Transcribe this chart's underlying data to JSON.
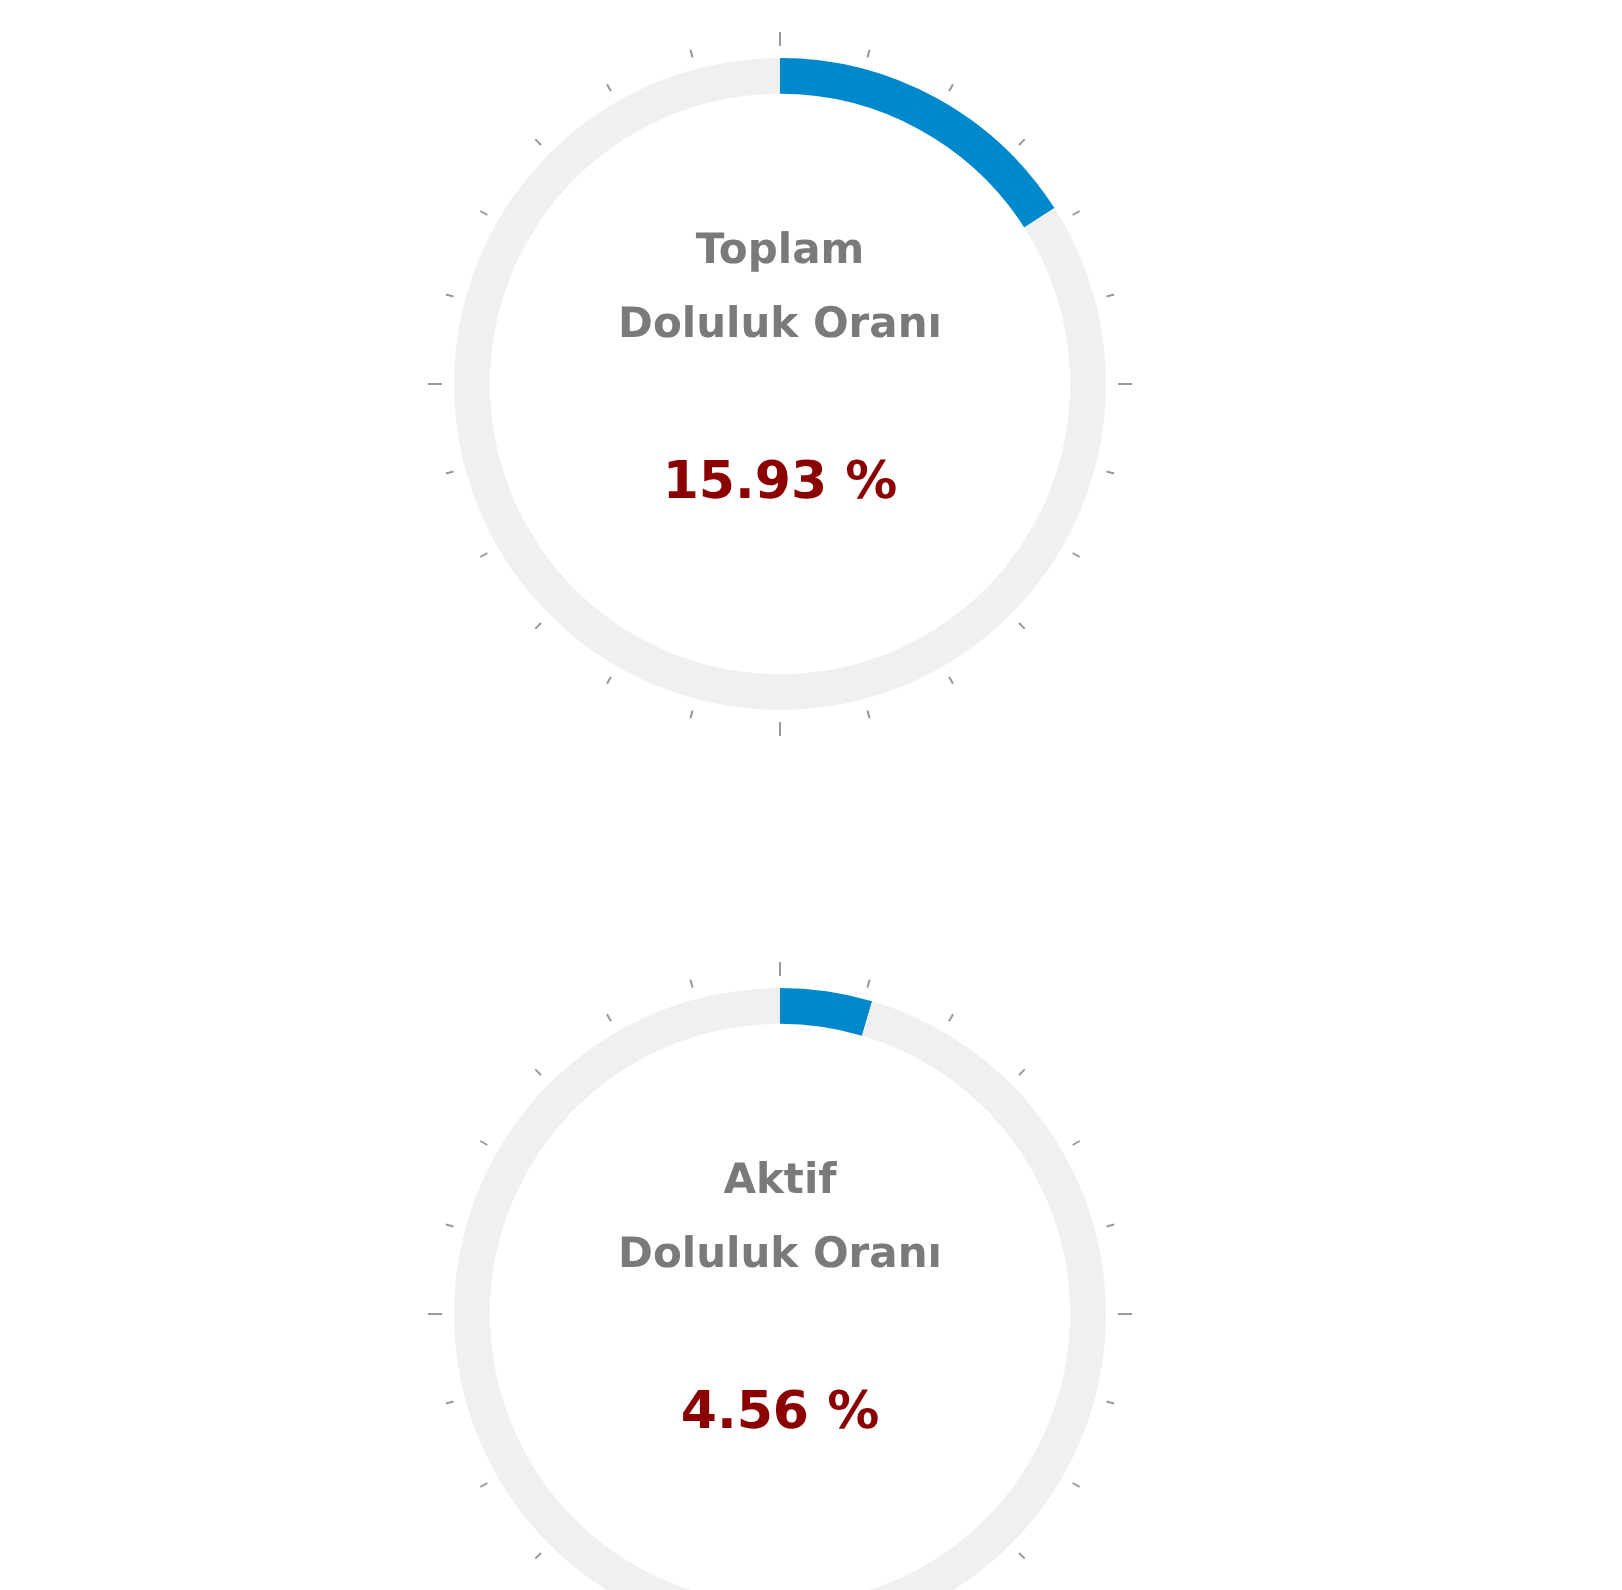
{
  "chart_data": [
    {
      "type": "donut",
      "title": "Toplam\nDoluluk Oranı",
      "categories": [
        null,
        null
      ],
      "values": [
        15.93,
        84.07
      ],
      "colors": [
        "#0088cc",
        "#f0f0f0"
      ],
      "annotations": [
        "15.93 %"
      ],
      "legend": false
    },
    {
      "type": "donut",
      "title": "Aktif\nDoluluk Oranı",
      "categories": [
        null,
        null
      ],
      "values": [
        4.56,
        95.44
      ],
      "colors": [
        "#0088cc",
        "#f0f0f0"
      ],
      "annotations": [
        "4.56 %"
      ],
      "legend": false
    }
  ]
}
